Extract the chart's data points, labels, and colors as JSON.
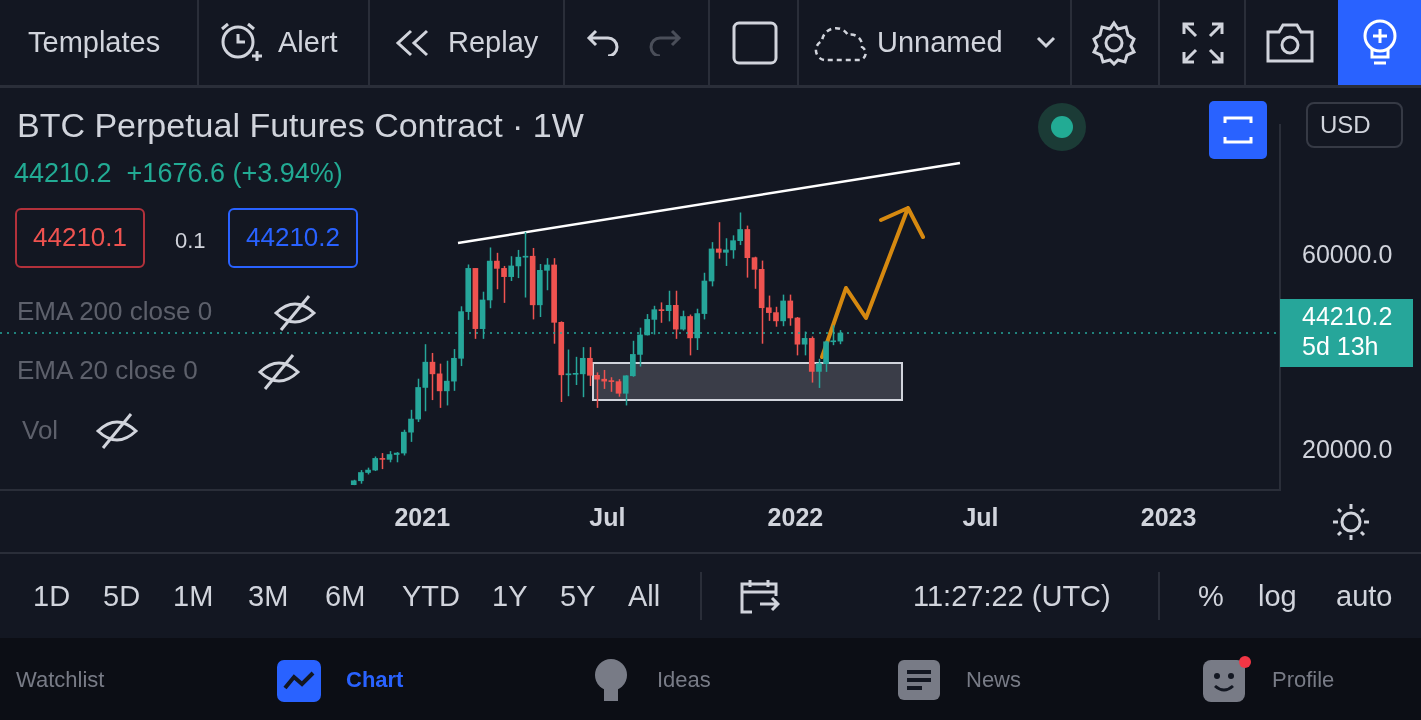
{
  "chart_data": {
    "type": "candlestick",
    "title": "BTC Perpetual Futures Contract · 1W",
    "subtitle": "44210.2  +1676.6 (+3.94%)",
    "x": [
      "2020-10-26",
      "2020-11-02",
      "2020-11-09",
      "2020-11-16",
      "2020-11-23",
      "2020-11-30",
      "2020-12-07",
      "2020-12-14",
      "2020-12-21",
      "2020-12-28",
      "2021-01-04",
      "2021-01-11",
      "2021-01-18",
      "2021-01-25",
      "2021-02-01",
      "2021-02-08",
      "2021-02-15",
      "2021-02-22",
      "2021-03-01",
      "2021-03-08",
      "2021-03-15",
      "2021-03-22",
      "2021-03-29",
      "2021-04-05",
      "2021-04-12",
      "2021-04-19",
      "2021-04-26",
      "2021-05-03",
      "2021-05-10",
      "2021-05-17",
      "2021-05-24",
      "2021-05-31",
      "2021-06-07",
      "2021-06-14",
      "2021-06-21",
      "2021-06-28",
      "2021-07-05",
      "2021-07-12",
      "2021-07-19",
      "2021-07-26",
      "2021-08-02",
      "2021-08-09",
      "2021-08-16",
      "2021-08-23",
      "2021-08-30",
      "2021-09-06",
      "2021-09-13",
      "2021-09-20",
      "2021-09-27",
      "2021-10-04",
      "2021-10-11",
      "2021-10-18",
      "2021-10-25",
      "2021-11-01",
      "2021-11-08",
      "2021-11-15",
      "2021-11-22",
      "2021-11-29",
      "2021-12-06",
      "2021-12-13",
      "2021-12-20",
      "2021-12-27",
      "2022-01-03",
      "2022-01-10",
      "2022-01-17",
      "2022-01-24",
      "2022-01-31",
      "2022-02-07",
      "2022-02-14"
    ],
    "ohlc": [
      [
        13000,
        14000,
        12900,
        13800
      ],
      [
        13800,
        16000,
        13200,
        15500
      ],
      [
        15500,
        16500,
        15100,
        16000
      ],
      [
        16000,
        18800,
        15800,
        18400
      ],
      [
        18400,
        19500,
        16200,
        18200
      ],
      [
        18200,
        19900,
        17600,
        19200
      ],
      [
        19200,
        19700,
        17600,
        19500
      ],
      [
        19500,
        24300,
        19000,
        23800
      ],
      [
        23800,
        28400,
        21800,
        26500
      ],
      [
        26500,
        34800,
        25900,
        33000
      ],
      [
        33000,
        41900,
        28100,
        38200
      ],
      [
        38200,
        40100,
        30400,
        35800
      ],
      [
        35800,
        37900,
        28800,
        32300
      ],
      [
        32300,
        38500,
        29300,
        34300
      ],
      [
        34300,
        40900,
        32300,
        39000
      ],
      [
        39000,
        49700,
        37400,
        48600
      ],
      [
        48600,
        58300,
        46900,
        57500
      ],
      [
        57500,
        57500,
        43000,
        45100
      ],
      [
        45100,
        52700,
        43000,
        51000
      ],
      [
        51000,
        61800,
        49300,
        59000
      ],
      [
        59000,
        60700,
        53200,
        57500
      ],
      [
        57500,
        58000,
        50400,
        55800
      ],
      [
        55800,
        60000,
        54900,
        58000
      ],
      [
        58000,
        61300,
        55500,
        59800
      ],
      [
        59800,
        65000,
        51500,
        60000
      ],
      [
        60000,
        61700,
        47000,
        50000
      ],
      [
        50000,
        58400,
        47500,
        57100
      ],
      [
        57100,
        59600,
        53000,
        58200
      ],
      [
        58200,
        59600,
        42000,
        46400
      ],
      [
        46400,
        46600,
        30000,
        35600
      ],
      [
        35600,
        40800,
        31200,
        35700
      ],
      [
        35700,
        39300,
        33500,
        35800
      ],
      [
        35800,
        41300,
        31000,
        39000
      ],
      [
        39000,
        41300,
        33300,
        35500
      ],
      [
        35500,
        36100,
        28800,
        34700
      ],
      [
        34700,
        36600,
        32700,
        34300
      ],
      [
        34300,
        35100,
        32100,
        34200
      ],
      [
        34200,
        34700,
        31100,
        31800
      ],
      [
        31800,
        35500,
        29300,
        35400
      ],
      [
        35400,
        42600,
        35200,
        39800
      ],
      [
        39800,
        45300,
        37300,
        43800
      ],
      [
        43800,
        48100,
        43700,
        47000
      ],
      [
        47000,
        49800,
        43900,
        49000
      ],
      [
        49000,
        50500,
        46300,
        48800
      ],
      [
        48800,
        52900,
        46600,
        49900
      ],
      [
        49900,
        52900,
        43000,
        45000
      ],
      [
        45000,
        48800,
        44700,
        47600
      ],
      [
        47600,
        48000,
        39600,
        43200
      ],
      [
        43200,
        49200,
        40700,
        48200
      ],
      [
        48200,
        56600,
        47000,
        54900
      ],
      [
        54900,
        62900,
        53800,
        61500
      ],
      [
        61500,
        67000,
        59500,
        60800
      ],
      [
        60800,
        63700,
        58000,
        61300
      ],
      [
        61300,
        64300,
        59500,
        63200
      ],
      [
        63200,
        69000,
        62300,
        65500
      ],
      [
        65500,
        66300,
        55600,
        59700
      ],
      [
        59700,
        59900,
        53300,
        57300
      ],
      [
        57300,
        59100,
        42000,
        49400
      ],
      [
        49400,
        51900,
        46700,
        48400
      ],
      [
        48400,
        49600,
        45500,
        46700
      ],
      [
        46700,
        52100,
        45600,
        50800
      ],
      [
        50800,
        52100,
        45700,
        47300
      ],
      [
        47300,
        47500,
        39600,
        41900
      ],
      [
        41900,
        44500,
        39600,
        43100
      ],
      [
        43100,
        43500,
        34000,
        36300
      ],
      [
        36300,
        38900,
        32900,
        37900
      ],
      [
        37900,
        42600,
        36200,
        42400
      ],
      [
        42400,
        45800,
        41700,
        42533.6
      ],
      [
        42533.6,
        44800,
        41900,
        44210.2
      ]
    ],
    "xlim": [
      "2019-11-15",
      "2023-04-20"
    ],
    "xticks": [
      {
        "value": "2021-01-01",
        "label": "2021"
      },
      {
        "value": "2021-07-01",
        "label": "Jul"
      },
      {
        "value": "2022-01-01",
        "label": "2022"
      },
      {
        "value": "2022-07-01",
        "label": "Jul"
      },
      {
        "value": "2023-01-01",
        "label": "2023"
      }
    ],
    "ylim": [
      11900,
      87000
    ],
    "yticks": [
      {
        "value": 20000,
        "label": "20000.0"
      },
      {
        "value": 60000,
        "label": "60000.0"
      }
    ],
    "grid": false,
    "legend": false,
    "ref_lines": [
      {
        "axis": "y",
        "value": 44210.2,
        "label": "44210.2\n5d 13h",
        "color": "#26a69a",
        "line_style": "dotted"
      }
    ],
    "annotations": [
      "44210.1",
      "0.1",
      "44210.2",
      "EMA 200 close 0",
      "EMA 20 close 0",
      "Vol",
      "USD",
      "Templates",
      "Alert",
      "Replay",
      "Unnamed",
      "1D",
      "5D",
      "1M",
      "3M",
      "6M",
      "YTD",
      "1Y",
      "5Y",
      "All",
      "11:27:22 (UTC)",
      "%",
      "log",
      "auto",
      "Watchlist",
      "Chart",
      "Ideas",
      "News",
      "Profile"
    ]
  }
}
